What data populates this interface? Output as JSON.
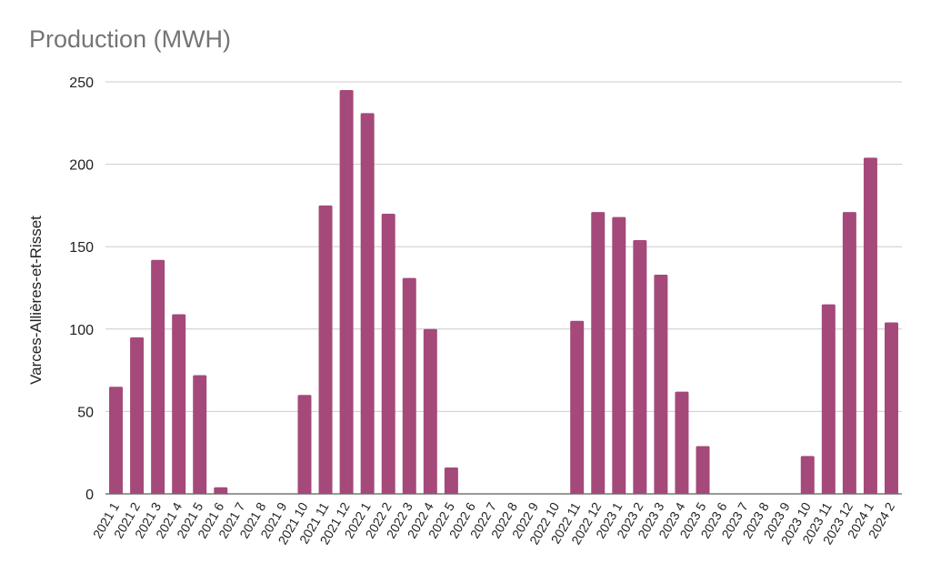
{
  "chart_data": {
    "type": "bar",
    "title": "Production (MWH)",
    "xlabel": "",
    "ylabel": "Varces-Allières-et-Risset",
    "ylim": [
      0,
      250
    ],
    "yticks": [
      0,
      50,
      100,
      150,
      200,
      250
    ],
    "grid": true,
    "legend": "none",
    "color": "#a4497a",
    "categories": [
      "2021 1",
      "2021 2",
      "2021 3",
      "2021 4",
      "2021 5",
      "2021 6",
      "2021 7",
      "2021 8",
      "2021 9",
      "2021 10",
      "2021 11",
      "2021 12",
      "2022 1",
      "2022 2",
      "2022 3",
      "2022 4",
      "2022 5",
      "2022 6",
      "2022 7",
      "2022 8",
      "2022 9",
      "2022 10",
      "2022 11",
      "2022 12",
      "2023 1",
      "2023 2",
      "2023 3",
      "2023 4",
      "2023 5",
      "2023 6",
      "2023 7",
      "2023 8",
      "2023 9",
      "2023 10",
      "2023 11",
      "2023 12",
      "2024 1",
      "2024 2"
    ],
    "values": [
      65,
      95,
      142,
      109,
      72,
      4,
      0,
      0,
      0,
      60,
      175,
      245,
      231,
      170,
      131,
      100,
      16,
      0,
      0,
      0,
      0,
      0,
      105,
      171,
      168,
      154,
      133,
      62,
      29,
      0,
      0,
      0,
      0,
      23,
      115,
      171,
      204,
      104
    ]
  }
}
